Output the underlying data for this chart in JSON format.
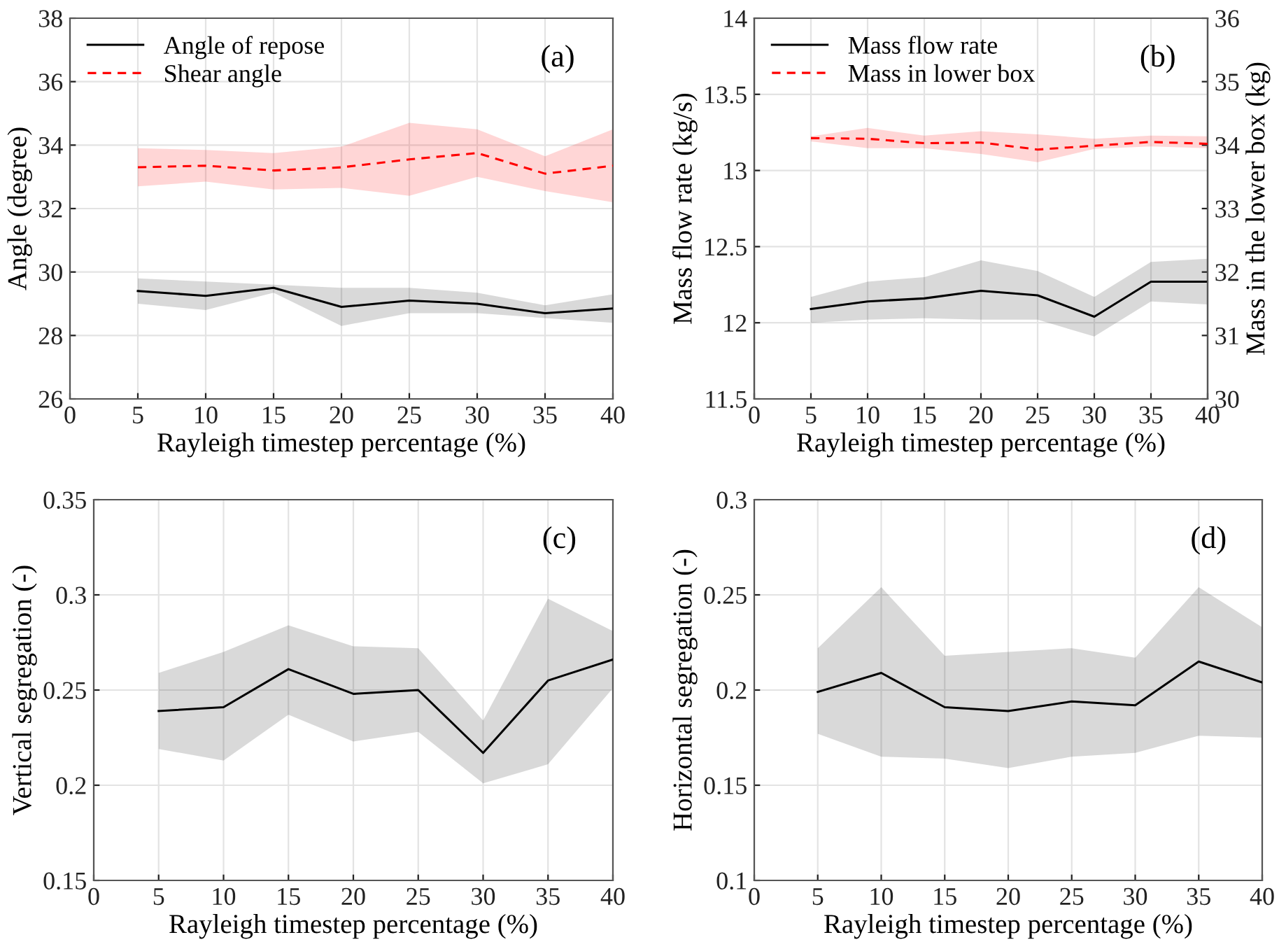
{
  "chart_data": [
    {
      "type": "line",
      "xlabel": "Rayleigh timestep percentage (%)",
      "ylabel": "Angle (degree)",
      "annotations": [
        "(a)"
      ],
      "x": [
        5,
        10,
        15,
        20,
        25,
        30,
        35,
        40
      ],
      "xlim": [
        0,
        40
      ],
      "xticks": [
        0,
        5,
        10,
        15,
        20,
        25,
        30,
        35,
        40
      ],
      "ylim": [
        26,
        38
      ],
      "yticks": [
        26,
        28,
        30,
        32,
        34,
        36,
        38
      ],
      "grid": true,
      "legend": "top left",
      "series": [
        {
          "name": "Angle of repose",
          "color": "#000000",
          "line_style": "solid",
          "values": [
            29.4,
            29.25,
            29.5,
            28.9,
            29.1,
            29.0,
            28.7,
            28.85
          ],
          "lower": [
            29.0,
            28.8,
            29.35,
            28.3,
            28.7,
            28.7,
            28.55,
            28.4
          ],
          "upper": [
            29.8,
            29.7,
            29.6,
            29.5,
            29.5,
            29.35,
            28.95,
            29.3
          ]
        },
        {
          "name": "Shear angle",
          "color": "#ff0000",
          "line_style": "dashed",
          "values": [
            33.3,
            33.35,
            33.2,
            33.3,
            33.55,
            33.75,
            33.1,
            33.35
          ],
          "lower": [
            32.7,
            32.85,
            32.6,
            32.65,
            32.4,
            33.0,
            32.55,
            32.2
          ],
          "upper": [
            33.9,
            33.85,
            33.75,
            33.95,
            34.7,
            34.5,
            33.65,
            34.5
          ]
        }
      ]
    },
    {
      "type": "line",
      "xlabel": "Rayleigh timestep percentage (%)",
      "ylabel": "Mass flow rate (kg/s)",
      "y2label": "Mass in the lower box (kg)",
      "annotations": [
        "(b)"
      ],
      "x": [
        5,
        10,
        15,
        20,
        25,
        30,
        35,
        40
      ],
      "xlim": [
        0,
        40
      ],
      "xticks": [
        0,
        5,
        10,
        15,
        20,
        25,
        30,
        35,
        40
      ],
      "ylim": [
        11.5,
        14
      ],
      "yticks": [
        11.5,
        12,
        12.5,
        13,
        13.5,
        14
      ],
      "y2lim": [
        30,
        36
      ],
      "y2ticks": [
        30,
        31,
        32,
        33,
        34,
        35,
        36
      ],
      "grid": true,
      "legend": "top left",
      "series": [
        {
          "name": "Mass flow rate",
          "color": "#000000",
          "line_style": "solid",
          "values": [
            12.09,
            12.14,
            12.16,
            12.21,
            12.18,
            12.04,
            12.27,
            12.27
          ],
          "lower": [
            12.0,
            12.02,
            12.03,
            12.02,
            12.02,
            11.91,
            12.14,
            12.12
          ],
          "upper": [
            12.17,
            12.27,
            12.3,
            12.41,
            12.34,
            12.17,
            12.4,
            12.42
          ]
        },
        {
          "name": "Mass in lower box",
          "color": "#ff0000",
          "line_style": "dashed",
          "axis": "y2",
          "values": [
            34.11,
            34.1,
            34.03,
            34.04,
            33.93,
            33.99,
            34.05,
            34.02
          ],
          "lower": [
            34.06,
            33.95,
            33.95,
            33.86,
            33.73,
            33.94,
            33.98,
            33.95
          ],
          "upper": [
            34.14,
            34.27,
            34.15,
            34.22,
            34.17,
            34.1,
            34.15,
            34.14
          ]
        }
      ]
    },
    {
      "type": "line",
      "xlabel": "Rayleigh timestep percentage (%)",
      "ylabel": "Vertical segregation (-)",
      "annotations": [
        "(c)"
      ],
      "x": [
        5,
        10,
        15,
        20,
        25,
        30,
        35,
        40
      ],
      "xlim": [
        0,
        40
      ],
      "xticks": [
        0,
        5,
        10,
        15,
        20,
        25,
        30,
        35,
        40
      ],
      "ylim": [
        0.15,
        0.35
      ],
      "yticks": [
        0.15,
        0.2,
        0.25,
        0.3,
        0.35
      ],
      "grid": true,
      "series": [
        {
          "color": "#000000",
          "line_style": "solid",
          "values": [
            0.239,
            0.241,
            0.261,
            0.248,
            0.25,
            0.217,
            0.255,
            0.266
          ],
          "lower": [
            0.219,
            0.213,
            0.237,
            0.223,
            0.228,
            0.201,
            0.211,
            0.251
          ],
          "upper": [
            0.259,
            0.27,
            0.284,
            0.273,
            0.272,
            0.234,
            0.298,
            0.281
          ]
        }
      ]
    },
    {
      "type": "line",
      "xlabel": "Rayleigh timestep percentage (%)",
      "ylabel": "Horizontal segregation (-)",
      "annotations": [
        "(d)"
      ],
      "x": [
        5,
        10,
        15,
        20,
        25,
        30,
        35,
        40
      ],
      "xlim": [
        0,
        40
      ],
      "xticks": [
        0,
        5,
        10,
        15,
        20,
        25,
        30,
        35,
        40
      ],
      "ylim": [
        0.1,
        0.3
      ],
      "yticks": [
        0.1,
        0.15,
        0.2,
        0.25,
        0.3
      ],
      "grid": true,
      "series": [
        {
          "color": "#000000",
          "line_style": "solid",
          "values": [
            0.199,
            0.209,
            0.191,
            0.189,
            0.194,
            0.192,
            0.215,
            0.204
          ],
          "lower": [
            0.177,
            0.165,
            0.164,
            0.159,
            0.165,
            0.167,
            0.176,
            0.175
          ],
          "upper": [
            0.222,
            0.254,
            0.218,
            0.22,
            0.222,
            0.217,
            0.254,
            0.233
          ]
        }
      ]
    }
  ]
}
